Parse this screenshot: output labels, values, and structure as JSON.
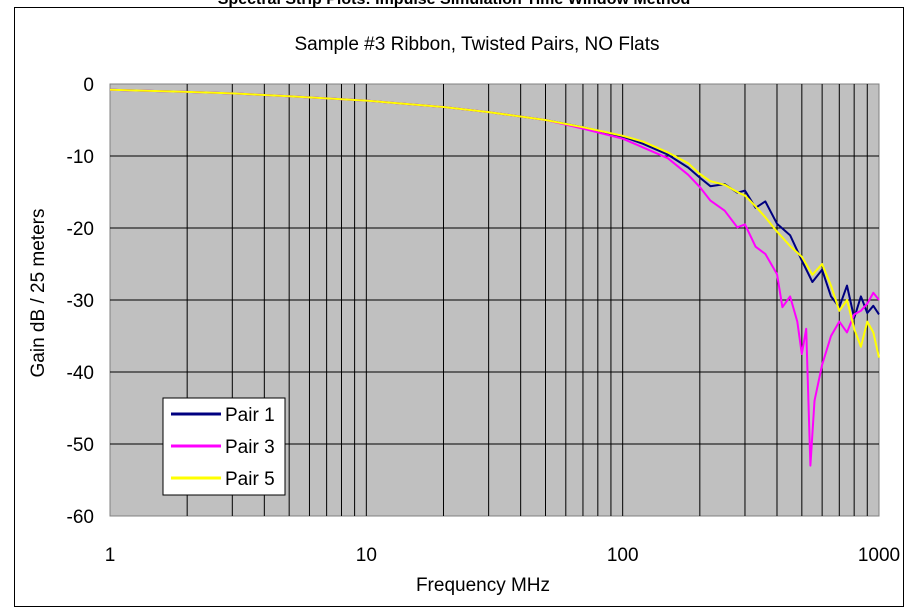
{
  "page_header": "Spectral Strip Plots: Impulse Simulation Time Window Method",
  "chart_data": {
    "type": "line",
    "title": "Sample #3   Ribbon, Twisted Pairs, NO Flats",
    "xlabel": "Frequency   MHz",
    "ylabel": "Gain   dB / 25 meters",
    "x_scale": "log",
    "xlim": [
      1,
      1000
    ],
    "ylim": [
      -60,
      0
    ],
    "x_ticks": [
      "1",
      "10",
      "100",
      "1000"
    ],
    "y_ticks": [
      "0",
      "-10",
      "-20",
      "-30",
      "-40",
      "-50",
      "-60"
    ],
    "grid": true,
    "plot_background": "#c0c0c0",
    "legend_position": "bottom-left",
    "series": [
      {
        "name": "Pair 1",
        "color": "#000080",
        "x": [
          1,
          2,
          3,
          5,
          10,
          20,
          30,
          50,
          70,
          100,
          120,
          150,
          180,
          200,
          220,
          250,
          280,
          300,
          330,
          360,
          400,
          450,
          500,
          550,
          600,
          650,
          700,
          750,
          800,
          850,
          900,
          950,
          1000
        ],
        "y": [
          -0.8,
          -1.1,
          -1.3,
          -1.7,
          -2.3,
          -3.2,
          -3.9,
          -5.0,
          -6.0,
          -7.3,
          -8.3,
          -9.8,
          -11.6,
          -13.0,
          -14.2,
          -13.9,
          -15.1,
          -14.8,
          -17.2,
          -16.3,
          -19.4,
          -21.0,
          -24.5,
          -27.5,
          -25.8,
          -29.5,
          -31.0,
          -28.0,
          -32.5,
          -29.5,
          -31.8,
          -30.8,
          -32.0
        ]
      },
      {
        "name": "Pair 3",
        "color": "#ff00ff",
        "x": [
          1,
          2,
          3,
          5,
          10,
          20,
          30,
          50,
          70,
          100,
          120,
          150,
          180,
          200,
          220,
          250,
          280,
          300,
          330,
          360,
          400,
          420,
          450,
          480,
          500,
          520,
          540,
          560,
          600,
          650,
          700,
          750,
          800,
          850,
          900,
          950,
          1000
        ],
        "y": [
          -0.8,
          -1.1,
          -1.3,
          -1.7,
          -2.3,
          -3.2,
          -3.9,
          -5.0,
          -6.2,
          -7.6,
          -8.8,
          -10.3,
          -12.6,
          -14.3,
          -16.2,
          -17.6,
          -19.9,
          -19.5,
          -22.6,
          -23.6,
          -26.4,
          -31.0,
          -29.5,
          -33.0,
          -37.5,
          -34.0,
          -53.0,
          -44.0,
          -39.0,
          -35.0,
          -33.0,
          -34.5,
          -32.0,
          -31.5,
          -30.5,
          -29.0,
          -30.0
        ]
      },
      {
        "name": "Pair 5",
        "color": "#ffff00",
        "x": [
          1,
          2,
          3,
          5,
          10,
          20,
          30,
          50,
          70,
          100,
          120,
          150,
          180,
          200,
          220,
          250,
          280,
          300,
          330,
          360,
          400,
          450,
          500,
          550,
          600,
          650,
          700,
          750,
          800,
          850,
          900,
          950,
          1000
        ],
        "y": [
          -0.8,
          -1.1,
          -1.3,
          -1.7,
          -2.3,
          -3.2,
          -3.9,
          -5.0,
          -6.0,
          -7.2,
          -8.0,
          -9.5,
          -11.0,
          -12.5,
          -13.5,
          -14.0,
          -15.0,
          -15.5,
          -17.0,
          -18.5,
          -20.5,
          -22.5,
          -24.0,
          -26.5,
          -25.0,
          -28.0,
          -31.5,
          -30.0,
          -34.0,
          -36.5,
          -33.0,
          -34.5,
          -38.0
        ]
      }
    ]
  }
}
